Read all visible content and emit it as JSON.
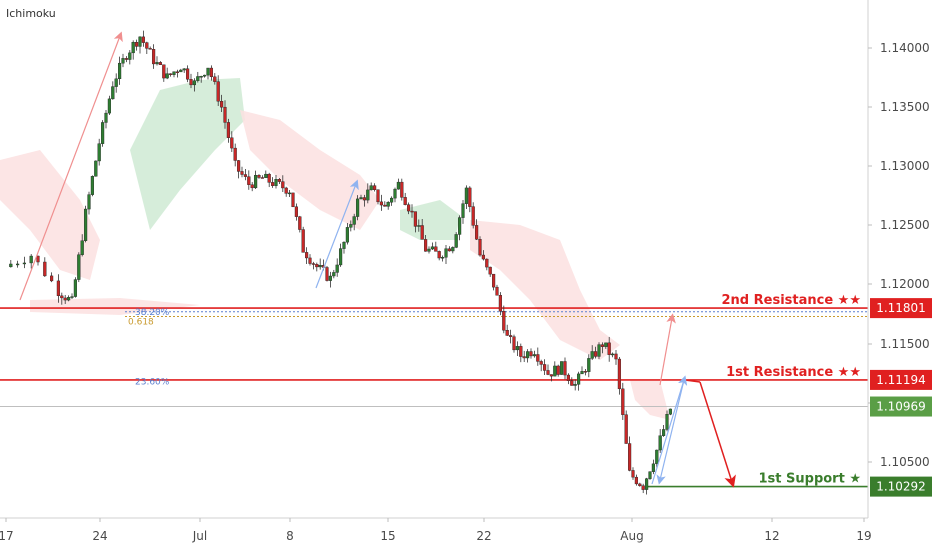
{
  "chart_data": {
    "type": "candlestick",
    "indicator": "Ichimoku",
    "x_ticks": [
      "17",
      "24",
      "Jul",
      "8",
      "15",
      "22",
      "Aug",
      "12",
      "19"
    ],
    "y_ticks": [
      "1.14000",
      "1.13500",
      "1.13000",
      "1.12500",
      "1.12000",
      "1.11500",
      "1.11000",
      "1.10500"
    ],
    "ylim": [
      1.1,
      1.145
    ],
    "levels": [
      {
        "name": "2nd Resistance ★★",
        "price": 1.11801,
        "label": "1.11801",
        "color": "#e02020"
      },
      {
        "name": "1st Resistance ★★",
        "price": 1.11194,
        "label": "1.11194",
        "color": "#e02020"
      },
      {
        "name": "1st Support ★",
        "price": 1.10292,
        "label": "1.10292",
        "color": "#3a7d2c"
      }
    ],
    "current_price": {
      "price": 1.10969,
      "label": "1.10969",
      "color": "#5a9e46"
    },
    "fib_labels": [
      {
        "text": "38.20%",
        "price": 1.1177,
        "color": "#5b7fcf"
      },
      {
        "text": "0.618",
        "price": 1.1173,
        "color": "#c99a2e"
      },
      {
        "text": "23.60%",
        "price": 1.1118,
        "color": "#5b7fcf"
      }
    ],
    "price_path": [
      [
        0,
        1.1215
      ],
      [
        2,
        1.1225
      ],
      [
        4,
        1.1195
      ],
      [
        5,
        1.1185
      ],
      [
        6,
        1.126
      ],
      [
        7,
        1.132
      ],
      [
        8,
        1.137
      ],
      [
        9,
        1.1395
      ],
      [
        10,
        1.141
      ],
      [
        11,
        1.139
      ],
      [
        12,
        1.1375
      ],
      [
        13,
        1.1385
      ],
      [
        14,
        1.137
      ],
      [
        15,
        1.1385
      ],
      [
        16,
        1.135
      ],
      [
        17,
        1.13
      ],
      [
        18,
        1.1285
      ],
      [
        19,
        1.129
      ],
      [
        20,
        1.1285
      ],
      [
        21,
        1.128
      ],
      [
        22,
        1.123
      ],
      [
        23,
        1.1215
      ],
      [
        24,
        1.1205
      ],
      [
        25,
        1.1235
      ],
      [
        26,
        1.127
      ],
      [
        27,
        1.128
      ],
      [
        28,
        1.1265
      ],
      [
        29,
        1.1285
      ],
      [
        30,
        1.126
      ],
      [
        31,
        1.123
      ],
      [
        32,
        1.1225
      ],
      [
        33,
        1.1235
      ],
      [
        34,
        1.128
      ],
      [
        35,
        1.1225
      ],
      [
        36,
        1.12
      ],
      [
        37,
        1.1155
      ],
      [
        38,
        1.114
      ],
      [
        39,
        1.1145
      ],
      [
        40,
        1.1125
      ],
      [
        41,
        1.113
      ],
      [
        42,
        1.1115
      ],
      [
        43,
        1.1135
      ],
      [
        44,
        1.115
      ],
      [
        45,
        1.1135
      ],
      [
        46,
        1.104
      ],
      [
        47,
        1.103
      ],
      [
        48,
        1.106
      ],
      [
        49,
        1.1095
      ]
    ]
  },
  "indicator_label": "Ichimoku"
}
